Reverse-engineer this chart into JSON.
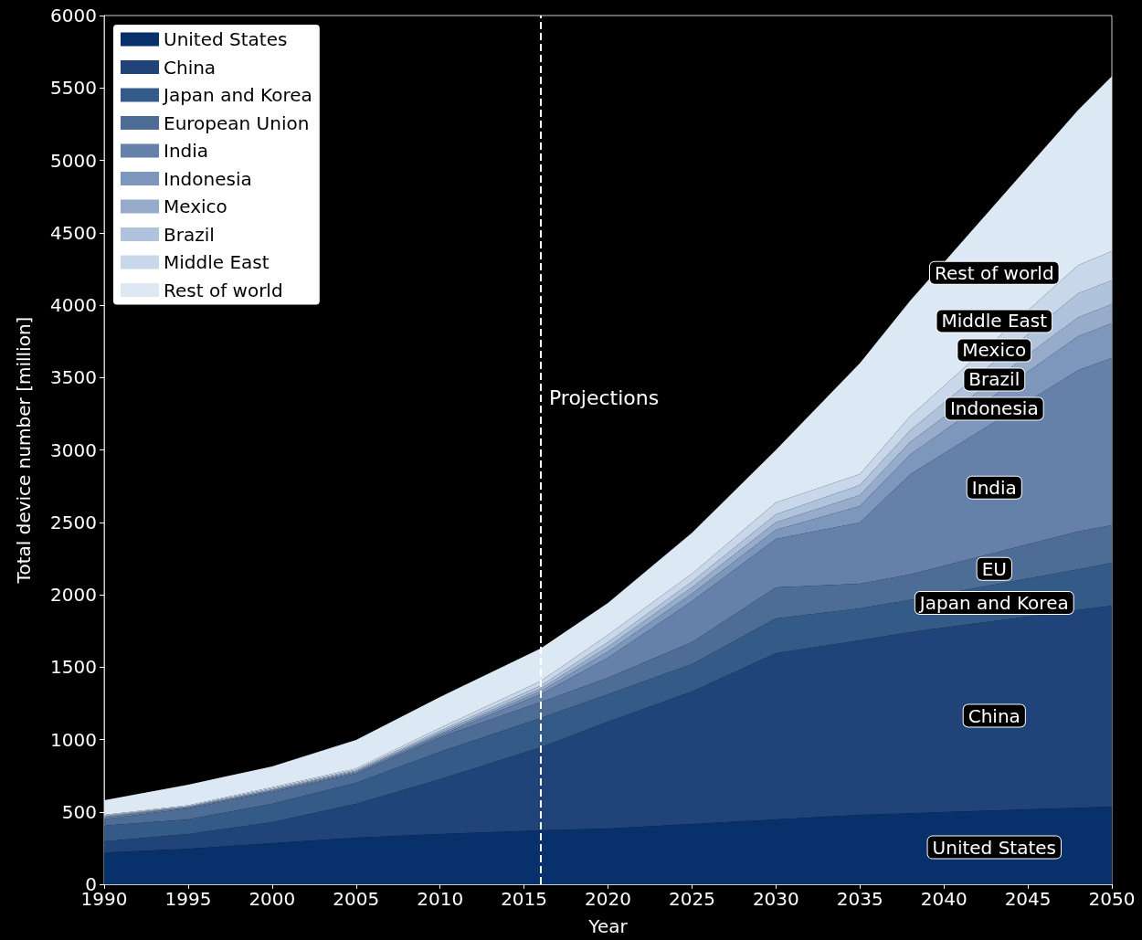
{
  "chart_data": {
    "type": "area",
    "stacked": true,
    "xlabel": "Year",
    "ylabel": "Total device number [million]",
    "x": [
      1990,
      1995,
      2000,
      2005,
      2010,
      2016,
      2020,
      2025,
      2030,
      2035,
      2038,
      2048,
      2050
    ],
    "series": [
      {
        "name": "United States",
        "color": "#08306b",
        "values": [
          220,
          245,
          284,
          322,
          347,
          372,
          385,
          416,
          448,
          480,
          491,
          528,
          536
        ]
      },
      {
        "name": "China",
        "color": "#204479",
        "values": [
          77,
          102,
          145,
          233,
          378,
          574,
          738,
          915,
          1148,
          1205,
          1251,
          1366,
          1388
        ]
      },
      {
        "name": "Japan and Korea",
        "color": "#345a88",
        "values": [
          108,
          101,
          126,
          145,
          190,
          202,
          189,
          189,
          240,
          220,
          221,
          281,
          296
        ]
      },
      {
        "name": "European Union",
        "color": "#4d6d97",
        "values": [
          45,
          76,
          82,
          63,
          101,
          110,
          114,
          152,
          214,
          171,
          178,
          262,
          260
        ]
      },
      {
        "name": "India",
        "color": "#6581aa",
        "values": [
          10,
          6,
          8,
          9,
          14,
          55,
          139,
          283,
          335,
          422,
          691,
          1114,
          1154
        ]
      },
      {
        "name": "Indonesia",
        "color": "#7c96bc",
        "values": [
          5,
          3,
          5,
          6,
          10,
          20,
          43,
          51,
          63,
          114,
          136,
          235,
          240
        ]
      },
      {
        "name": "Mexico",
        "color": "#96acca",
        "values": [
          5,
          3,
          5,
          6,
          10,
          18,
          32,
          44,
          52,
          76,
          87,
          130,
          132
        ]
      },
      {
        "name": "Brazil",
        "color": "#b0c3dc",
        "values": [
          5,
          4,
          7,
          6,
          12,
          22,
          32,
          40,
          55,
          69,
          80,
          166,
          164
        ]
      },
      {
        "name": "Middle East",
        "color": "#c8d7e9",
        "values": [
          5,
          5,
          8,
          10,
          18,
          30,
          50,
          55,
          82,
          76,
          98,
          194,
          202
        ]
      },
      {
        "name": "Rest of world",
        "color": "#dde8f5",
        "values": [
          100,
          143,
          144,
          197,
          213,
          227,
          221,
          282,
          363,
          767,
          799,
          1072,
          1208
        ]
      }
    ],
    "xlim": [
      1990,
      2050
    ],
    "xticks": [
      1990,
      1995,
      2000,
      2005,
      2010,
      2015,
      2020,
      2025,
      2030,
      2035,
      2040,
      2045,
      2050
    ],
    "ylim": [
      0,
      6000
    ],
    "yticks": [
      0,
      500,
      1000,
      1500,
      2000,
      2500,
      3000,
      3500,
      4000,
      4500,
      5000,
      5500,
      6000
    ],
    "ref_lines": [
      {
        "axis": "x",
        "value": 2016,
        "label": "Projections",
        "color": "#ffffff",
        "line_style": "dashed"
      }
    ],
    "annotations": [
      "Rest of world",
      "Middle East",
      "Mexico",
      "Brazil",
      "Indonesia",
      "India",
      "EU",
      "Japan and Korea",
      "China",
      "United States"
    ],
    "legend": "top left",
    "grid": false
  }
}
